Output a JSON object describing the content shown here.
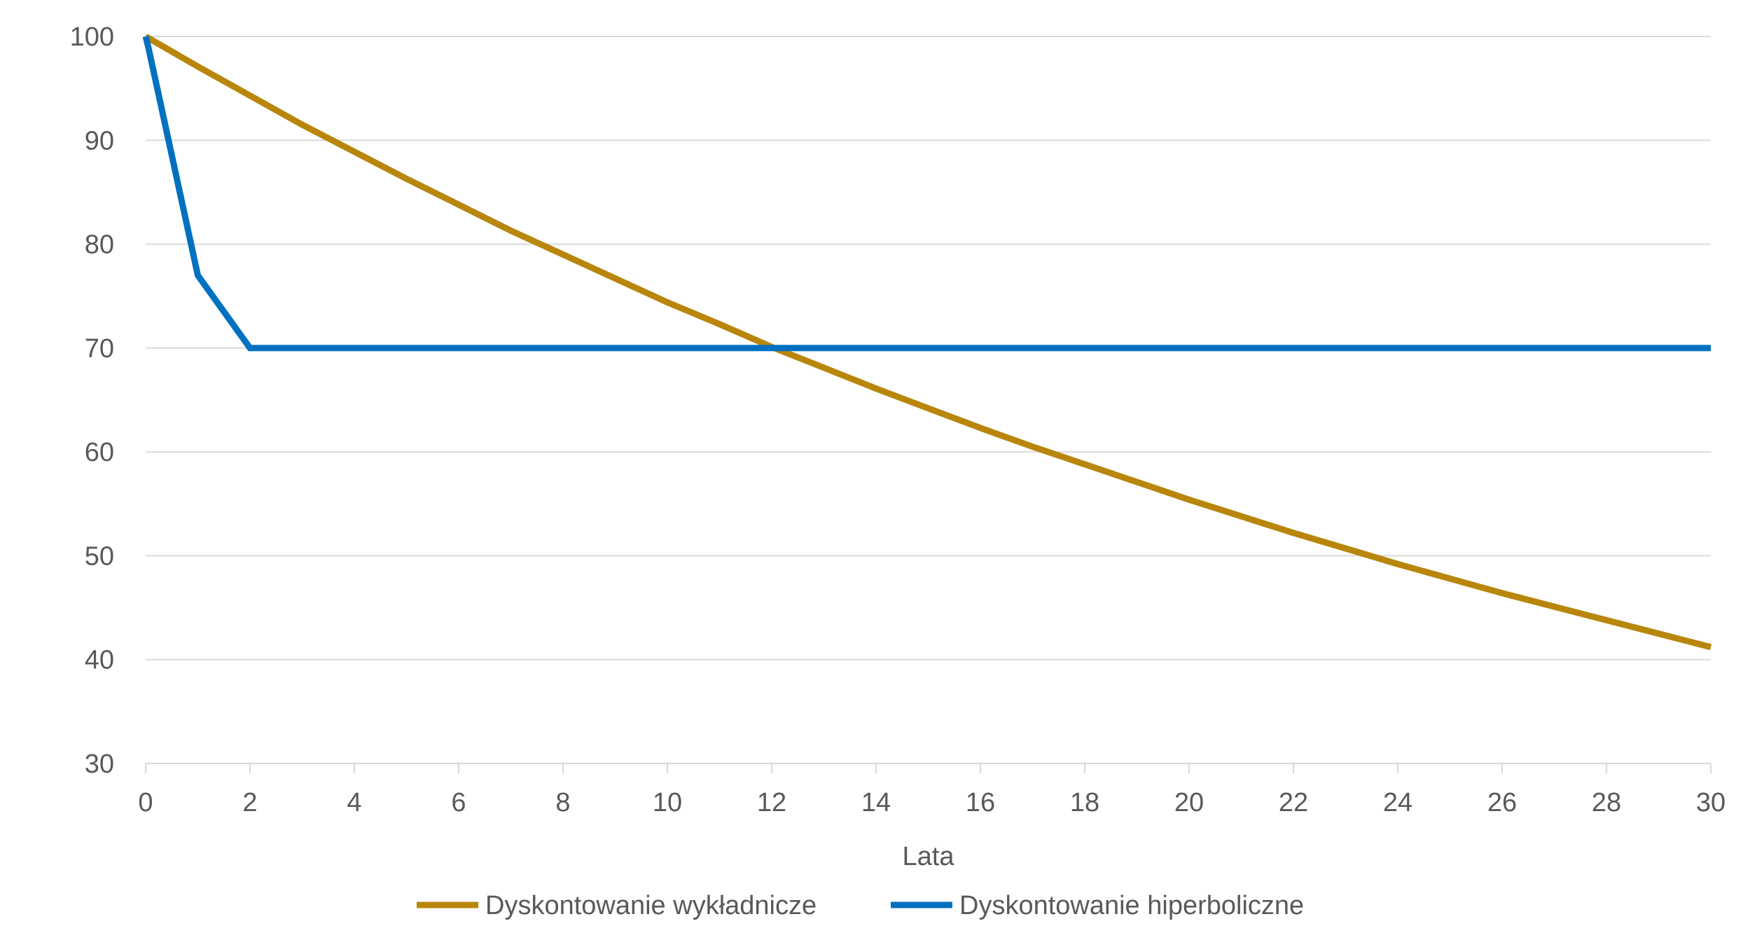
{
  "chart_data": {
    "type": "line",
    "title": "",
    "xlabel": "Lata",
    "ylabel": "",
    "xlim": [
      0,
      30
    ],
    "ylim": [
      30,
      100
    ],
    "x_ticks": [
      "0",
      "2",
      "4",
      "6",
      "8",
      "10",
      "12",
      "14",
      "16",
      "18",
      "20",
      "22",
      "24",
      "26",
      "28",
      "30"
    ],
    "y_ticks": [
      "30",
      "40",
      "50",
      "60",
      "70",
      "80",
      "90",
      "100"
    ],
    "grid": "horizontal",
    "legend_position": "bottom",
    "series": [
      {
        "name": "Dyskontowanie wykładnicze",
        "color": "#B8860B",
        "x": [
          0,
          1,
          2,
          3,
          4,
          5,
          6,
          7,
          8,
          9,
          10,
          11,
          12,
          13,
          14,
          15,
          16,
          17,
          18,
          19,
          20,
          21,
          22,
          23,
          24,
          25,
          26,
          27,
          28,
          29,
          30
        ],
        "values": [
          100,
          97.1,
          94.3,
          91.5,
          88.9,
          86.3,
          83.8,
          81.3,
          79.0,
          76.7,
          74.4,
          72.3,
          70.1,
          68.1,
          66.1,
          64.2,
          62.3,
          60.5,
          58.8,
          57.1,
          55.4,
          53.8,
          52.2,
          50.7,
          49.2,
          47.8,
          46.4,
          45.1,
          43.8,
          42.5,
          41.2
        ]
      },
      {
        "name": "Dyskontowanie hiperboliczne",
        "color": "#0070C0",
        "x": [
          0,
          0.05,
          1,
          2,
          3,
          4,
          5,
          6,
          7,
          8,
          9,
          10,
          11,
          12,
          13,
          14,
          15,
          16,
          17,
          18,
          19,
          20,
          21,
          22,
          23,
          24,
          25,
          26,
          27,
          28,
          29,
          30
        ],
        "values": [
          100,
          99,
          77,
          70,
          70,
          70,
          70,
          70,
          70,
          70,
          70,
          70,
          70,
          70,
          70,
          70,
          70,
          70,
          70,
          70,
          70,
          70,
          70,
          70,
          70,
          70,
          70,
          70,
          70,
          70,
          70,
          70
        ]
      }
    ]
  }
}
